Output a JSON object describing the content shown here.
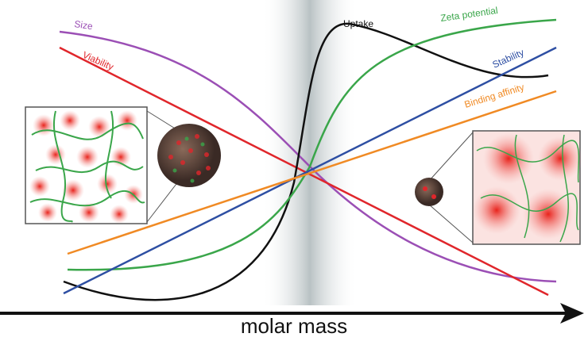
{
  "axis": {
    "label": "molar mass"
  },
  "curves": [
    {
      "label": "Size",
      "color": "#9b4fb5"
    },
    {
      "label": "Viability",
      "color": "#e0262b"
    },
    {
      "label": "Uptake",
      "color": "#111111"
    },
    {
      "label": "Zeta potential",
      "color": "#3aa64a"
    },
    {
      "label": "Stability",
      "color": "#2e4fa3"
    },
    {
      "label": "Binding affinity",
      "color": "#f08a24"
    }
  ]
}
